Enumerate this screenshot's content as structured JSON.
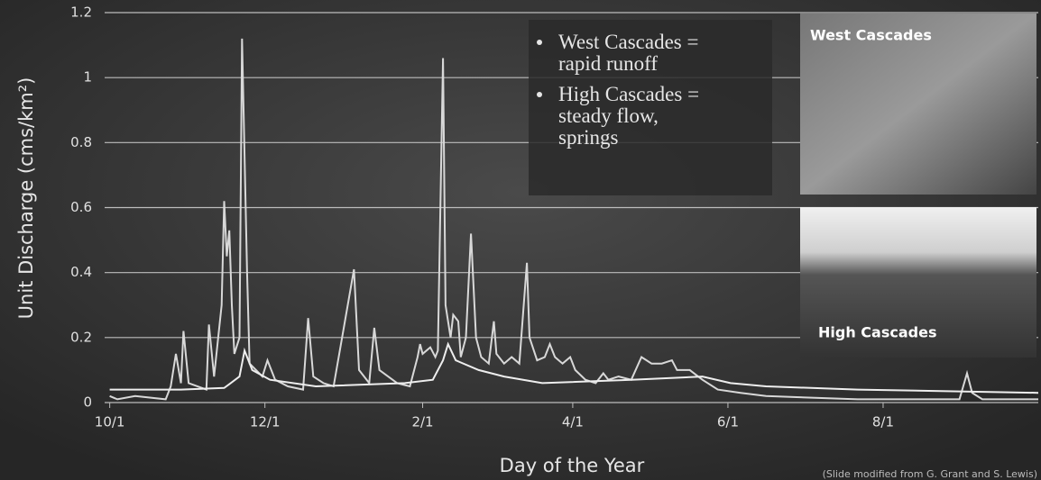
{
  "chart_data": {
    "type": "line",
    "y_label": "Unit Discharge (cms/km²)",
    "x_label": "Day of the Year",
    "xlim": [
      -2,
      365
    ],
    "xticks": [
      {
        "value": 0,
        "label": "10/1"
      },
      {
        "value": 61,
        "label": "12/1"
      },
      {
        "value": 123,
        "label": "2/1"
      },
      {
        "value": 182,
        "label": "4/1"
      },
      {
        "value": 243,
        "label": "6/1"
      },
      {
        "value": 304,
        "label": "8/1"
      }
    ],
    "ylim": [
      0,
      1.2
    ],
    "yticks": [
      0,
      0.2,
      0.4,
      0.6,
      0.8,
      1,
      1.2
    ],
    "grid": true,
    "series": [
      {
        "name": "West Cascades",
        "color": "#d8d8d8",
        "x": [
          0,
          3,
          10,
          22,
          24,
          26,
          28,
          29,
          31,
          38,
          39,
          41,
          44,
          45,
          46,
          47,
          48,
          49,
          51,
          52,
          54,
          55,
          60,
          62,
          65,
          70,
          76,
          78,
          80,
          84,
          88,
          96,
          98,
          102,
          104,
          106,
          113,
          118,
          121,
          122,
          123,
          126,
          128,
          129,
          131,
          132,
          134,
          135,
          137,
          138,
          140,
          142,
          144,
          146,
          149,
          151,
          152,
          155,
          158,
          161,
          164,
          165,
          168,
          171,
          173,
          175,
          178,
          181,
          183,
          187,
          191,
          194,
          196,
          200,
          205,
          209,
          213,
          217,
          221,
          223,
          228,
          233,
          239,
          248,
          258,
          276,
          294,
          311,
          334,
          337,
          339,
          343,
          365
        ],
        "values": [
          0.02,
          0.01,
          0.02,
          0.01,
          0.05,
          0.15,
          0.06,
          0.22,
          0.06,
          0.04,
          0.24,
          0.08,
          0.3,
          0.62,
          0.45,
          0.53,
          0.3,
          0.15,
          0.2,
          1.12,
          0.4,
          0.12,
          0.08,
          0.13,
          0.07,
          0.05,
          0.04,
          0.26,
          0.08,
          0.06,
          0.05,
          0.41,
          0.1,
          0.06,
          0.23,
          0.1,
          0.06,
          0.05,
          0.14,
          0.18,
          0.15,
          0.17,
          0.14,
          0.16,
          1.06,
          0.3,
          0.2,
          0.27,
          0.25,
          0.14,
          0.2,
          0.52,
          0.2,
          0.14,
          0.12,
          0.25,
          0.15,
          0.12,
          0.14,
          0.12,
          0.43,
          0.2,
          0.13,
          0.14,
          0.18,
          0.14,
          0.12,
          0.14,
          0.1,
          0.07,
          0.06,
          0.09,
          0.07,
          0.08,
          0.07,
          0.14,
          0.12,
          0.12,
          0.13,
          0.1,
          0.1,
          0.07,
          0.04,
          0.03,
          0.02,
          0.015,
          0.01,
          0.01,
          0.01,
          0.09,
          0.03,
          0.01,
          0.01
        ]
      },
      {
        "name": "High Cascades",
        "color": "#eeeeee",
        "x": [
          0,
          28,
          45,
          51,
          53,
          56,
          63,
          81,
          116,
          127,
          131,
          133,
          136,
          145,
          155,
          170,
          205,
          233,
          244,
          258,
          294,
          329,
          365
        ],
        "values": [
          0.04,
          0.04,
          0.045,
          0.08,
          0.16,
          0.1,
          0.07,
          0.05,
          0.06,
          0.07,
          0.13,
          0.18,
          0.13,
          0.1,
          0.08,
          0.06,
          0.07,
          0.08,
          0.06,
          0.05,
          0.04,
          0.035,
          0.03
        ]
      }
    ],
    "annotations": [
      [
        "West Cascades =",
        "rapid runoff"
      ],
      [
        "High Cascades =",
        "steady flow,",
        "springs"
      ]
    ],
    "photo_labels": [
      "West Cascades",
      "High Cascades"
    ],
    "credit": "(Slide modified from G. Grant and S. Lewis)"
  }
}
